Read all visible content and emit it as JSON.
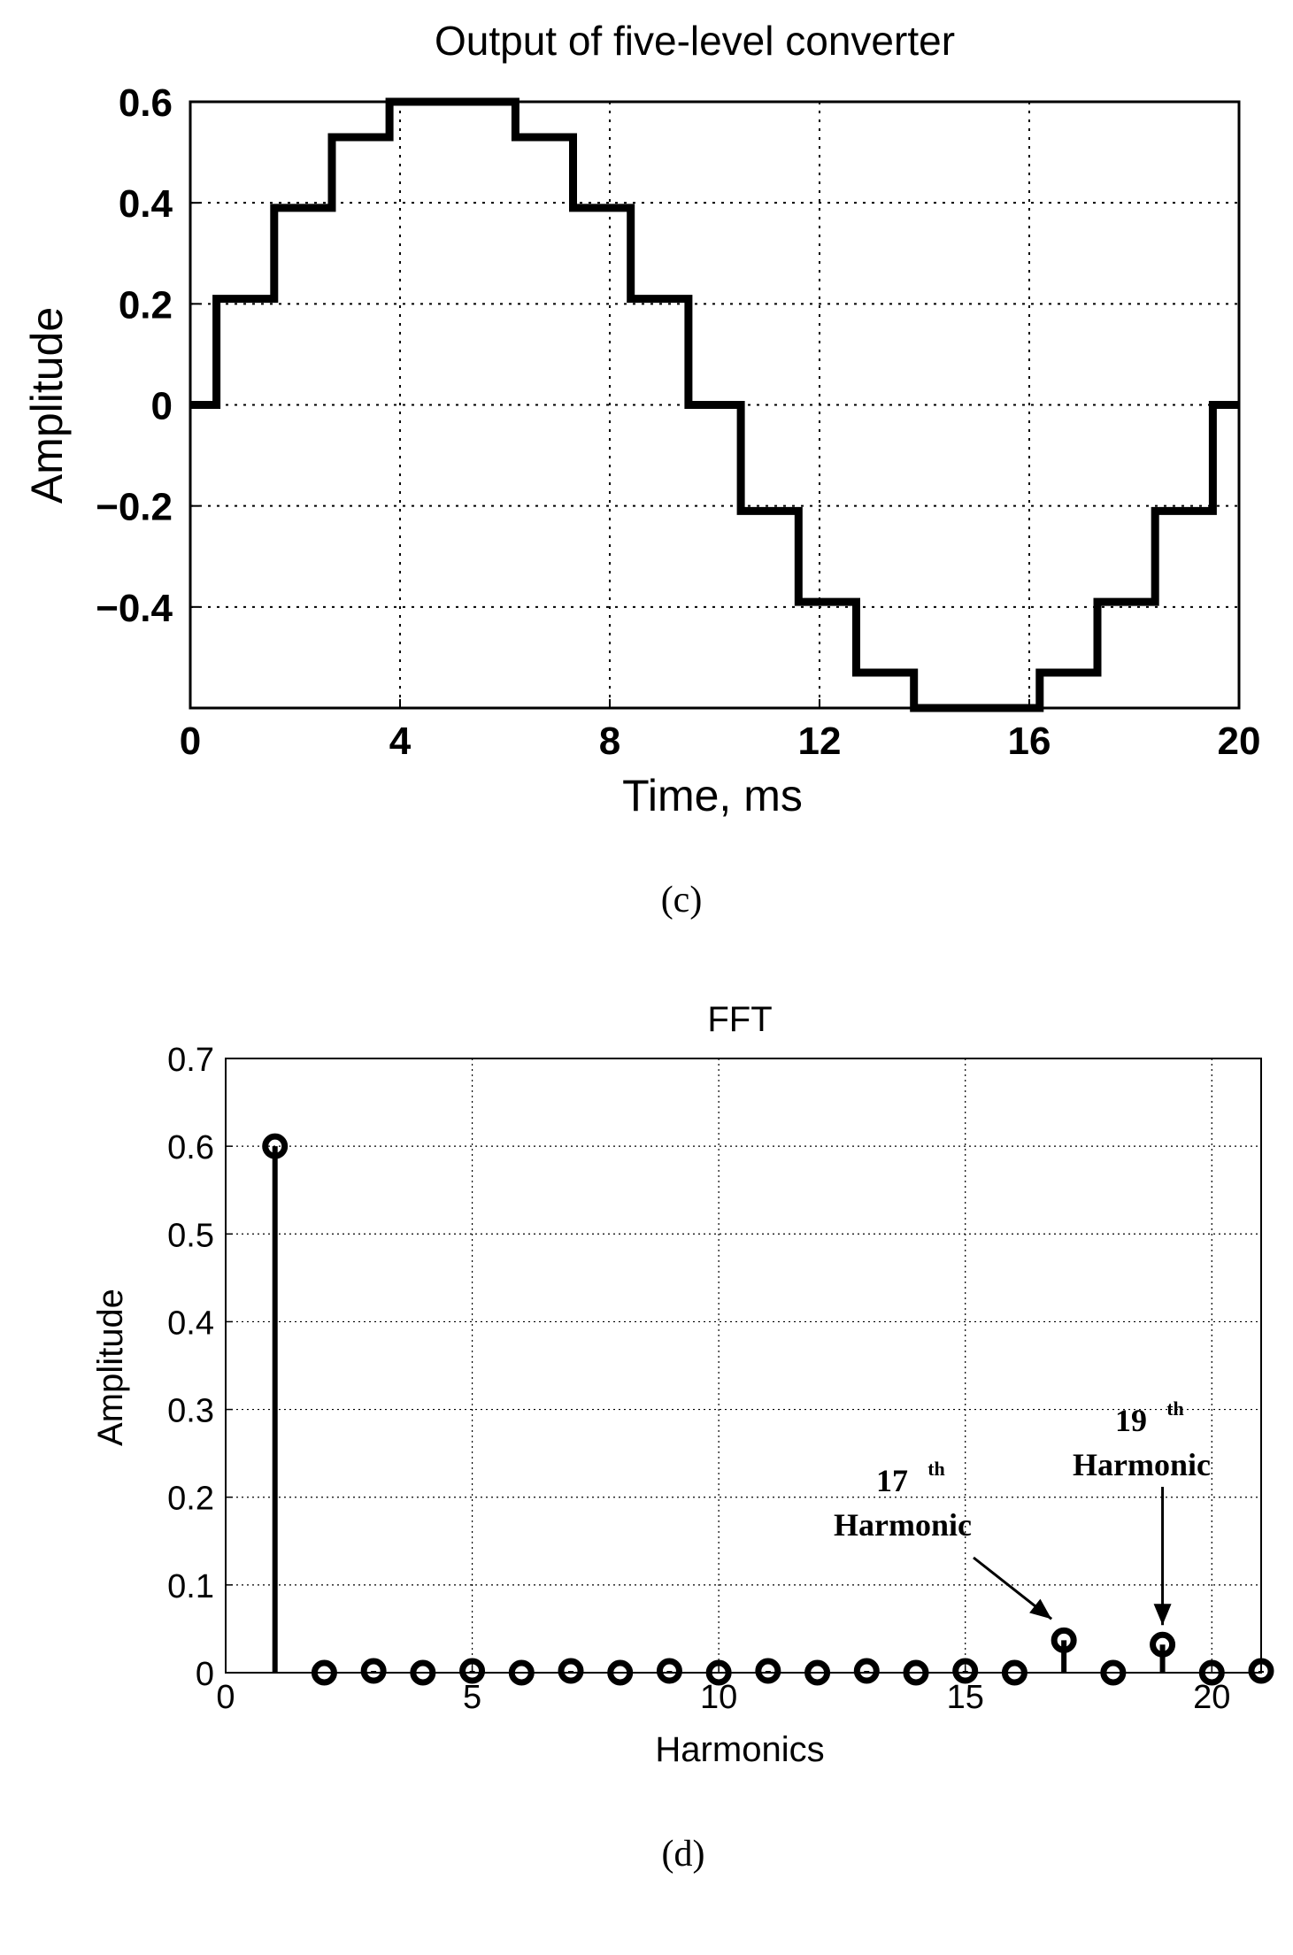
{
  "chart_data": [
    {
      "type": "line",
      "title": "Output of five-level converter",
      "xlabel": "Time, ms",
      "ylabel": "Amplitude",
      "xlim": [
        0,
        20
      ],
      "ylim": [
        -0.6,
        0.6
      ],
      "xticks": [
        0,
        4,
        8,
        12,
        16,
        20
      ],
      "xtick_labels": [
        "0",
        "4",
        "8",
        "12",
        "16",
        "20"
      ],
      "yticks": [
        0.6,
        0.4,
        0.2,
        0,
        -0.2,
        -0.4
      ],
      "ytick_labels": [
        "0.6",
        "0.4",
        "0.2",
        "0",
        "−0.2",
        "−0.4"
      ],
      "grid": true,
      "caption": "(c)",
      "series": [
        {
          "name": "output",
          "x": [
            0,
            0.5,
            0.5,
            1.6,
            1.6,
            2.7,
            2.7,
            3.8,
            3.8,
            6.2,
            6.2,
            7.3,
            7.3,
            8.4,
            8.4,
            9.5,
            9.5,
            10.5,
            10.5,
            11.6,
            11.6,
            12.7,
            12.7,
            13.8,
            13.8,
            16.2,
            16.2,
            17.3,
            17.3,
            18.4,
            18.4,
            19.5,
            19.5,
            20
          ],
          "y": [
            0,
            0,
            0.21,
            0.21,
            0.39,
            0.39,
            0.53,
            0.53,
            0.6,
            0.6,
            0.53,
            0.53,
            0.39,
            0.39,
            0.21,
            0.21,
            0,
            0,
            -0.21,
            -0.21,
            -0.39,
            -0.39,
            -0.53,
            -0.53,
            -0.6,
            -0.6,
            -0.53,
            -0.53,
            -0.39,
            -0.39,
            -0.21,
            -0.21,
            0,
            0
          ]
        }
      ]
    },
    {
      "type": "stem",
      "title": "FFT",
      "xlabel": "Harmonics",
      "ylabel": "Amplitude",
      "xlim": [
        0,
        21
      ],
      "ylim": [
        0,
        0.7
      ],
      "xticks": [
        0,
        5,
        10,
        15,
        20
      ],
      "xtick_labels": [
        "0",
        "5",
        "10",
        "15",
        "20"
      ],
      "yticks": [
        0.7,
        0.6,
        0.5,
        0.4,
        0.3,
        0.2,
        0.1,
        0
      ],
      "ytick_labels": [
        "0.7",
        "0.6",
        "0.5",
        "0.4",
        "0.3",
        "0.2",
        "0.1",
        "0"
      ],
      "grid": true,
      "caption": "(d)",
      "x": [
        1,
        2,
        3,
        4,
        5,
        6,
        7,
        8,
        9,
        10,
        11,
        12,
        13,
        14,
        15,
        16,
        17,
        18,
        19,
        20,
        21
      ],
      "values": [
        0.6,
        0,
        0.002,
        0,
        0.002,
        0,
        0.002,
        0,
        0.002,
        0,
        0.002,
        0,
        0.002,
        0,
        0.002,
        0,
        0.037,
        0,
        0.032,
        0,
        0.002
      ],
      "annotations": [
        {
          "target_harmonic": 17,
          "number": "17",
          "sup": "th",
          "text": "Harmonic"
        },
        {
          "target_harmonic": 19,
          "number": "19",
          "sup": "th",
          "text": "Harmonic"
        }
      ]
    }
  ]
}
